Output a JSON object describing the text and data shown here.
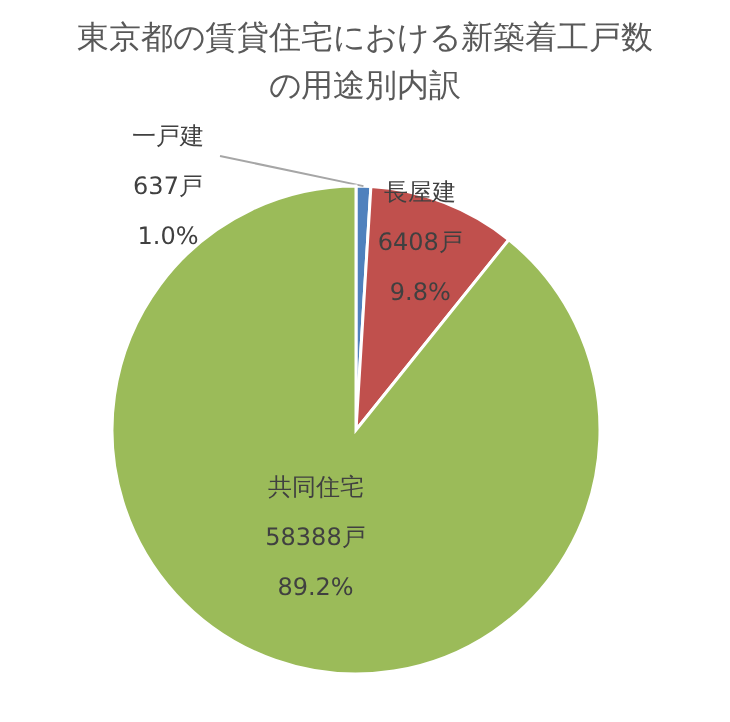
{
  "chart_data": {
    "type": "pie",
    "title": "東京都の賃貸住宅における新築着工戸数の用途別内訳",
    "categories": [
      "一戸建",
      "長屋建",
      "共同住宅"
    ],
    "values": [
      637,
      6408,
      58388
    ],
    "colors": [
      "#4f81bd",
      "#c0504d",
      "#9bbb59"
    ],
    "value_labels": [
      "637戸",
      "6408戸",
      "58388戸"
    ],
    "annotations": [
      {
        "text": "1.0%",
        "x": "一戸建"
      },
      {
        "text": "9.8%",
        "x": "長屋建"
      },
      {
        "text": "89.2%",
        "x": "共同住宅"
      }
    ]
  }
}
